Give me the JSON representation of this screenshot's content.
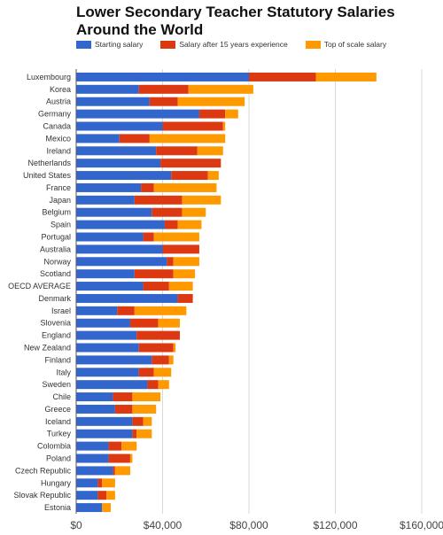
{
  "chart_data": {
    "type": "bar",
    "stacked": true,
    "orientation": "horizontal",
    "title": "Lower Secondary Teacher Statutory Salaries Around the World",
    "xlim": [
      0,
      160000
    ],
    "x_ticks": [
      "$0",
      "$40,000",
      "$80,000",
      "$120,000",
      "$160,000"
    ],
    "x_tick_values": [
      0,
      40000,
      80000,
      120000,
      160000
    ],
    "grid": "vertical",
    "legend_position": "top",
    "categories": [
      "Luxembourg",
      "Korea",
      "Austria",
      "Germany",
      "Canada",
      "Mexico",
      "Ireland",
      "Netherlands",
      "United States",
      "France",
      "Japan",
      "Belgium",
      "Spain",
      "Portugal",
      "Australia",
      "Norway",
      "Scotland",
      "OECD AVERAGE",
      "Denmark",
      "Israel",
      "Slovenia",
      "England",
      "New Zealand",
      "Finland",
      "Italy",
      "Sweden",
      "Chile",
      "Greece",
      "Iceland",
      "Turkey",
      "Colombia",
      "Poland",
      "Czech Republic",
      "Hungary",
      "Slovak Republic",
      "Estonia"
    ],
    "series": [
      {
        "name": "Starting salary",
        "color": "#3366cc",
        "values": [
          80000,
          29000,
          34000,
          57000,
          40000,
          20000,
          37000,
          39000,
          44000,
          30000,
          27000,
          35000,
          41000,
          31000,
          40000,
          42000,
          27000,
          31000,
          47000,
          19000,
          25000,
          28000,
          29000,
          35000,
          29000,
          33000,
          17000,
          18000,
          26000,
          26000,
          15000,
          15000,
          17000,
          10000,
          10000,
          12000
        ]
      },
      {
        "name": "Salary after 15 years experience",
        "color": "#dc3912",
        "values": [
          31000,
          23000,
          13000,
          12000,
          28000,
          14000,
          19000,
          28000,
          17000,
          6000,
          22000,
          14000,
          6000,
          5000,
          17000,
          3000,
          18000,
          12000,
          7000,
          8000,
          13000,
          20000,
          16000,
          8000,
          7000,
          5000,
          9000,
          8000,
          5000,
          2000,
          6000,
          10000,
          1000,
          2000,
          4000,
          0
        ]
      },
      {
        "name": "Top of scale salary",
        "color": "#ff9900",
        "values": [
          28000,
          30000,
          31000,
          6000,
          1000,
          35000,
          12000,
          0,
          5000,
          29000,
          18000,
          11000,
          11000,
          21000,
          0,
          12000,
          10000,
          11000,
          0,
          24000,
          10000,
          0,
          1000,
          2000,
          8000,
          5000,
          13000,
          11000,
          4000,
          7000,
          7000,
          1000,
          7000,
          6000,
          4000,
          4000
        ]
      }
    ]
  }
}
